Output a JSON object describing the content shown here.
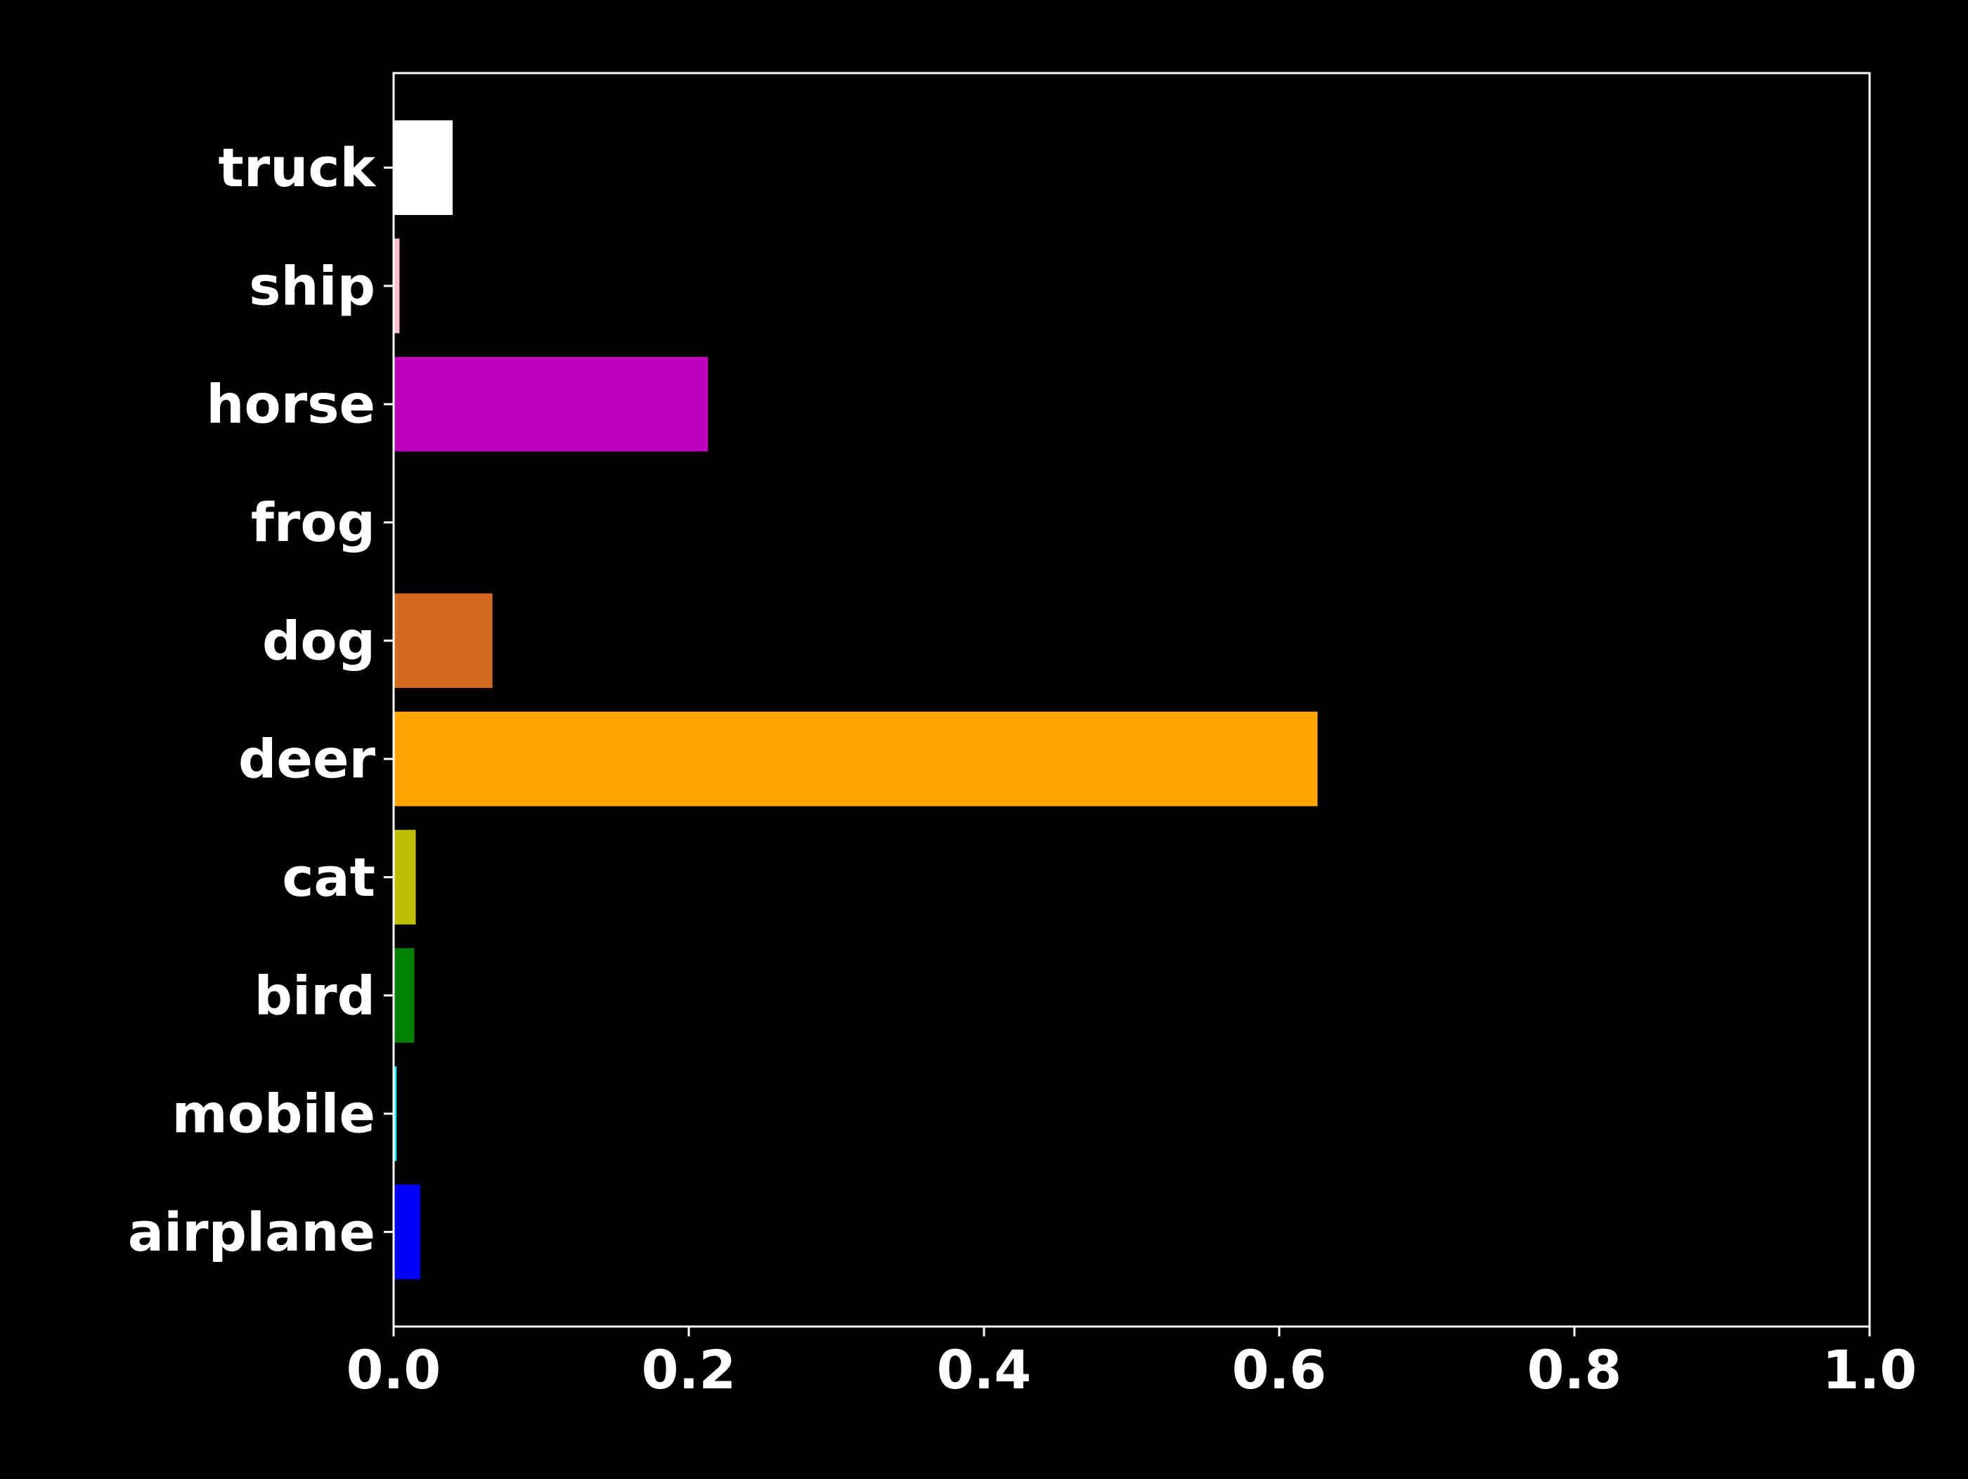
{
  "chart_data": {
    "type": "bar",
    "orientation": "horizontal",
    "title": "",
    "xlabel": "",
    "ylabel": "",
    "categories": [
      "airplane",
      "mobile",
      "bird",
      "cat",
      "deer",
      "dog",
      "frog",
      "horse",
      "ship",
      "truck"
    ],
    "values": [
      0.018,
      0.002,
      0.014,
      0.015,
      0.626,
      0.067,
      0.0005,
      0.213,
      0.004,
      0.04
    ],
    "colors": [
      "#0000ff",
      "#00ffff",
      "#008000",
      "#bfbf00",
      "#ffa500",
      "#d2691e",
      "#000000",
      "#bf00bf",
      "#ffc0cb",
      "#ffffff"
    ],
    "xlim": [
      0.0,
      1.0
    ],
    "xticks": [
      0.0,
      0.2,
      0.4,
      0.6,
      0.8,
      1.0
    ],
    "xtick_labels": [
      "0.0",
      "0.2",
      "0.4",
      "0.6",
      "0.8",
      "1.0"
    ],
    "grid": false,
    "background": "#000000",
    "foreground": "#ffffff"
  }
}
